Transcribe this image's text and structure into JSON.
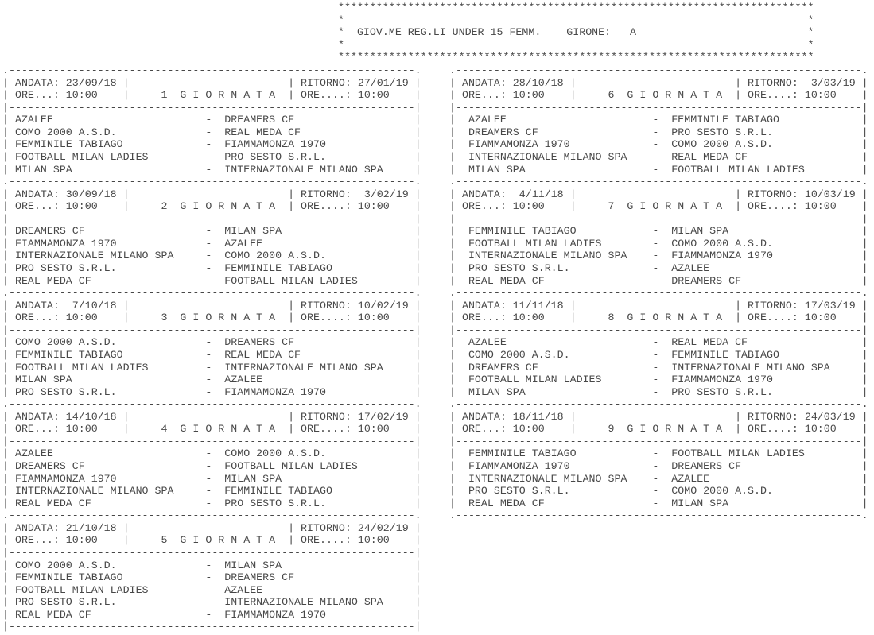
{
  "page": {
    "background": "#ffffff",
    "text_color": "#474747"
  },
  "header_box": {
    "title": "GIOV.ME REG.LI UNDER 15 FEMM.",
    "girone_label": "GIRONE:",
    "girone_value": "A"
  },
  "labels": {
    "andata": "ANDATA:",
    "ritorno": "RITORNO:",
    "ore_andata": "ORE...:",
    "ore_ritorno": "ORE....:",
    "giornata_word": "G I O R N A T A"
  },
  "columns": [
    {
      "end_border_left": "|",
      "end_border_right": "|",
      "rounds": [
        {
          "number": "1",
          "andata_date": "23/09/18",
          "ritorno_date": "27/01/19",
          "kickoff_time": "10:00",
          "matches": [
            {
              "home": "AZALEE",
              "away": "DREAMERS CF"
            },
            {
              "home": "COMO 2000 A.S.D.",
              "away": "REAL MEDA CF"
            },
            {
              "home": "FEMMINILE TABIAGO",
              "away": "FIAMMAMONZA 1970"
            },
            {
              "home": "FOOTBALL MILAN LADIES",
              "away": "PRO SESTO S.R.L."
            },
            {
              "home": "MILAN SPA",
              "away": "INTERNAZIONALE MILANO SPA"
            }
          ]
        },
        {
          "number": "2",
          "andata_date": "30/09/18",
          "ritorno_date": "3/02/19",
          "kickoff_time": "10:00",
          "matches": [
            {
              "home": "DREAMERS CF",
              "away": "MILAN SPA"
            },
            {
              "home": "FIAMMAMONZA 1970",
              "away": "AZALEE"
            },
            {
              "home": "INTERNAZIONALE MILANO SPA",
              "away": "COMO 2000 A.S.D."
            },
            {
              "home": "PRO SESTO S.R.L.",
              "away": "FEMMINILE TABIAGO"
            },
            {
              "home": "REAL MEDA CF",
              "away": "FOOTBALL MILAN LADIES"
            }
          ]
        },
        {
          "number": "3",
          "andata_date": "7/10/18",
          "ritorno_date": "10/02/19",
          "kickoff_time": "10:00",
          "matches": [
            {
              "home": "COMO 2000 A.S.D.",
              "away": "DREAMERS CF"
            },
            {
              "home": "FEMMINILE TABIAGO",
              "away": "REAL MEDA CF"
            },
            {
              "home": "FOOTBALL MILAN LADIES",
              "away": "INTERNAZIONALE MILANO SPA"
            },
            {
              "home": "MILAN SPA",
              "away": "AZALEE"
            },
            {
              "home": "PRO SESTO S.R.L.",
              "away": "FIAMMAMONZA 1970"
            }
          ]
        },
        {
          "number": "4",
          "andata_date": "14/10/18",
          "ritorno_date": "17/02/19",
          "kickoff_time": "10:00",
          "matches": [
            {
              "home": "AZALEE",
              "away": "COMO 2000 A.S.D."
            },
            {
              "home": "DREAMERS CF",
              "away": "FOOTBALL MILAN LADIES"
            },
            {
              "home": "FIAMMAMONZA 1970",
              "away": "MILAN SPA"
            },
            {
              "home": "INTERNAZIONALE MILANO SPA",
              "away": "FEMMINILE TABIAGO"
            },
            {
              "home": "REAL MEDA CF",
              "away": "PRO SESTO S.R.L."
            }
          ]
        },
        {
          "number": "5",
          "andata_date": "21/10/18",
          "ritorno_date": "24/02/19",
          "kickoff_time": "10:00",
          "matches": [
            {
              "home": "COMO 2000 A.S.D.",
              "away": "MILAN SPA"
            },
            {
              "home": "FEMMINILE TABIAGO",
              "away": "DREAMERS CF"
            },
            {
              "home": "FOOTBALL MILAN LADIES",
              "away": "AZALEE"
            },
            {
              "home": "PRO SESTO S.R.L.",
              "away": "INTERNAZIONALE MILANO SPA"
            },
            {
              "home": "REAL MEDA CF",
              "away": "FIAMMAMONZA 1970"
            }
          ]
        }
      ]
    },
    {
      "end_border_left": ".",
      "end_border_right": ".",
      "rounds": [
        {
          "number": "6",
          "andata_date": "28/10/18",
          "ritorno_date": "3/03/19",
          "kickoff_time": "10:00",
          "matches": [
            {
              "home": "AZALEE",
              "away": "FEMMINILE TABIAGO"
            },
            {
              "home": "DREAMERS CF",
              "away": "PRO SESTO S.R.L."
            },
            {
              "home": "FIAMMAMONZA 1970",
              "away": "COMO 2000 A.S.D."
            },
            {
              "home": "INTERNAZIONALE MILANO SPA",
              "away": "REAL MEDA CF"
            },
            {
              "home": "MILAN SPA",
              "away": "FOOTBALL MILAN LADIES"
            }
          ]
        },
        {
          "number": "7",
          "andata_date": "4/11/18",
          "ritorno_date": "10/03/19",
          "kickoff_time": "10:00",
          "matches": [
            {
              "home": "FEMMINILE TABIAGO",
              "away": "MILAN SPA"
            },
            {
              "home": "FOOTBALL MILAN LADIES",
              "away": "COMO 2000 A.S.D."
            },
            {
              "home": "INTERNAZIONALE MILANO SPA",
              "away": "FIAMMAMONZA 1970"
            },
            {
              "home": "PRO SESTO S.R.L.",
              "away": "AZALEE"
            },
            {
              "home": "REAL MEDA CF",
              "away": "DREAMERS CF"
            }
          ]
        },
        {
          "number": "8",
          "andata_date": "11/11/18",
          "ritorno_date": "17/03/19",
          "kickoff_time": "10:00",
          "matches": [
            {
              "home": "AZALEE",
              "away": "REAL MEDA CF"
            },
            {
              "home": "COMO 2000 A.S.D.",
              "away": "FEMMINILE TABIAGO"
            },
            {
              "home": "DREAMERS CF",
              "away": "INTERNAZIONALE MILANO SPA"
            },
            {
              "home": "FOOTBALL MILAN LADIES",
              "away": "FIAMMAMONZA 1970"
            },
            {
              "home": "MILAN SPA",
              "away": "PRO SESTO S.R.L."
            }
          ]
        },
        {
          "number": "9",
          "andata_date": "18/11/18",
          "ritorno_date": "24/03/19",
          "kickoff_time": "10:00",
          "matches": [
            {
              "home": "FEMMINILE TABIAGO",
              "away": "FOOTBALL MILAN LADIES"
            },
            {
              "home": "FIAMMAMONZA 1970",
              "away": "DREAMERS CF"
            },
            {
              "home": "INTERNAZIONALE MILANO SPA",
              "away": "AZALEE"
            },
            {
              "home": "PRO SESTO S.R.L.",
              "away": "COMO 2000 A.S.D."
            },
            {
              "home": "REAL MEDA CF",
              "away": "MILAN SPA"
            }
          ]
        }
      ]
    }
  ]
}
